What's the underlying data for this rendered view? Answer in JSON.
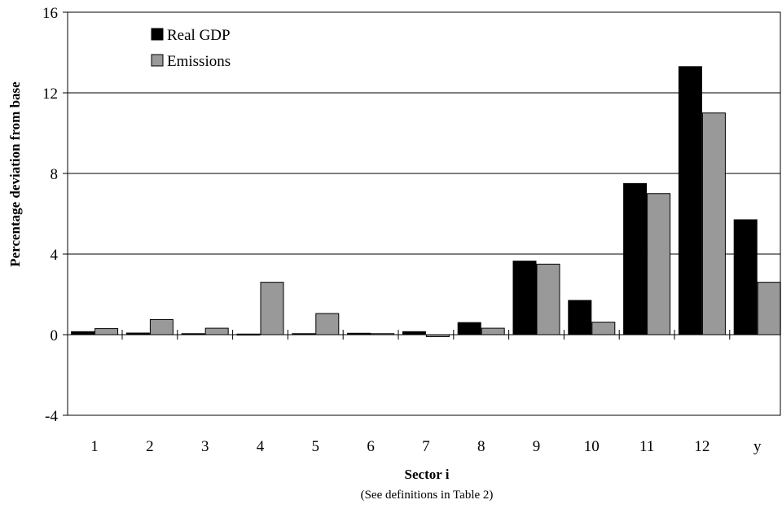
{
  "chart_data": {
    "type": "bar",
    "xlabel": "Sector i",
    "xlabel_note": "(See definitions in Table 2)",
    "ylabel": "Percentage deviation from base",
    "ylim": [
      -4,
      16
    ],
    "yticks": [
      -4,
      0,
      4,
      8,
      12,
      16
    ],
    "ytick_labels": [
      "-4",
      "0",
      "4",
      "8",
      "12",
      "16"
    ],
    "grid": true,
    "legend_position": "top-left",
    "categories": [
      "1",
      "2",
      "3",
      "4",
      "5",
      "6",
      "7",
      "8",
      "9",
      "10",
      "11",
      "12",
      "y"
    ],
    "series": [
      {
        "name": "Real GDP",
        "color": "#000000",
        "values": [
          0.15,
          0.08,
          0.05,
          0.03,
          0.05,
          0.07,
          0.15,
          0.6,
          3.65,
          1.7,
          7.5,
          13.3,
          5.7
        ]
      },
      {
        "name": "Emissions",
        "color": "#999999",
        "values": [
          0.3,
          0.75,
          0.32,
          2.6,
          1.05,
          0.05,
          -0.1,
          0.32,
          3.5,
          0.62,
          7.0,
          11.0,
          2.6
        ]
      }
    ]
  }
}
